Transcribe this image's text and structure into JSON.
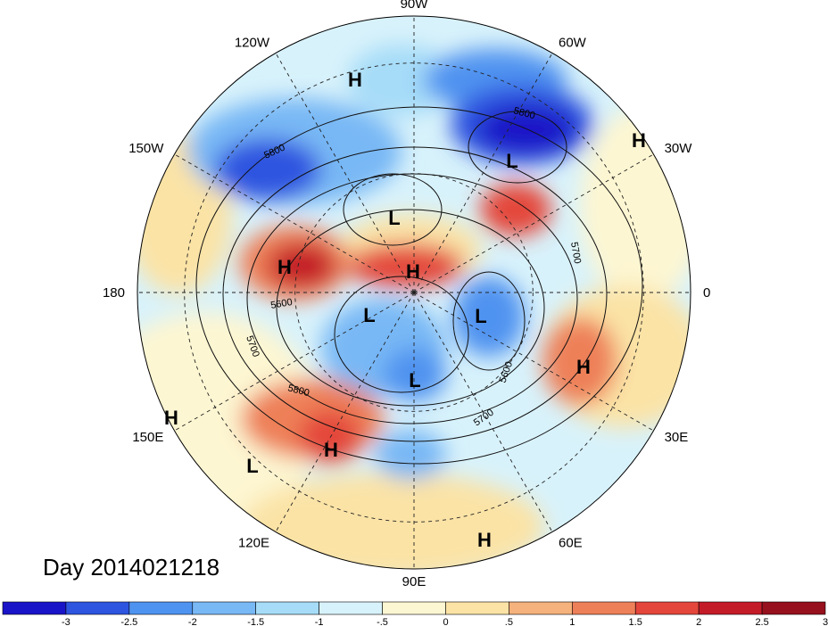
{
  "map": {
    "projection": "north-polar-stereographic",
    "center_longitude_at_bottom": "90W",
    "longitude_labels": [
      {
        "text": "90E",
        "lon": 90
      },
      {
        "text": "60E",
        "lon": 60
      },
      {
        "text": "30E",
        "lon": 30
      },
      {
        "text": "0",
        "lon": 0
      },
      {
        "text": "30W",
        "lon": -30
      },
      {
        "text": "60W",
        "lon": -60
      },
      {
        "text": "90W",
        "lon": -90
      },
      {
        "text": "120W",
        "lon": -120
      },
      {
        "text": "150W",
        "lon": -150
      },
      {
        "text": "180",
        "lon": 180
      },
      {
        "text": "150E",
        "lon": 150
      },
      {
        "text": "120E",
        "lon": 120
      }
    ],
    "pressure_centers": [
      {
        "type": "H",
        "region": "east-siberia"
      },
      {
        "type": "L",
        "region": "west-siberia"
      },
      {
        "type": "H",
        "region": "central-asia-east-of-caspian"
      },
      {
        "type": "L",
        "region": "arctic-siberia"
      },
      {
        "type": "H",
        "region": "bering-strait"
      },
      {
        "type": "H",
        "region": "arctic-ocean"
      },
      {
        "type": "L",
        "region": "alaska-yukon"
      },
      {
        "type": "L",
        "region": "greenland"
      },
      {
        "type": "L",
        "region": "hudson-bay"
      },
      {
        "type": "H",
        "region": "north-atlantic-azores"
      },
      {
        "type": "H",
        "region": "central-pacific"
      },
      {
        "type": "L",
        "region": "subtropical-pacific"
      },
      {
        "type": "H",
        "region": "california-coast"
      },
      {
        "type": "H",
        "region": "caribbean-south-america"
      }
    ],
    "contour_labels": [
      "5800",
      "5800",
      "5700",
      "5700",
      "5600",
      "5600",
      "5700",
      "5800",
      "5600",
      "5700"
    ],
    "day_label": "Day 2014021218"
  },
  "colorbar": {
    "colors": [
      "#1a14c8",
      "#2d55e0",
      "#4f93f0",
      "#78b8f5",
      "#a6dcf8",
      "#d8f2fb",
      "#fdf6d2",
      "#fbe3a6",
      "#f5b27c",
      "#ee8059",
      "#e4463b",
      "#c41b28",
      "#96101d"
    ],
    "ticks": [
      "-3",
      "-2.5",
      "-2",
      "-1.5",
      "-1",
      "-.5",
      "0",
      ".5",
      "1",
      "1.5",
      "2",
      "2.5",
      "3"
    ]
  }
}
